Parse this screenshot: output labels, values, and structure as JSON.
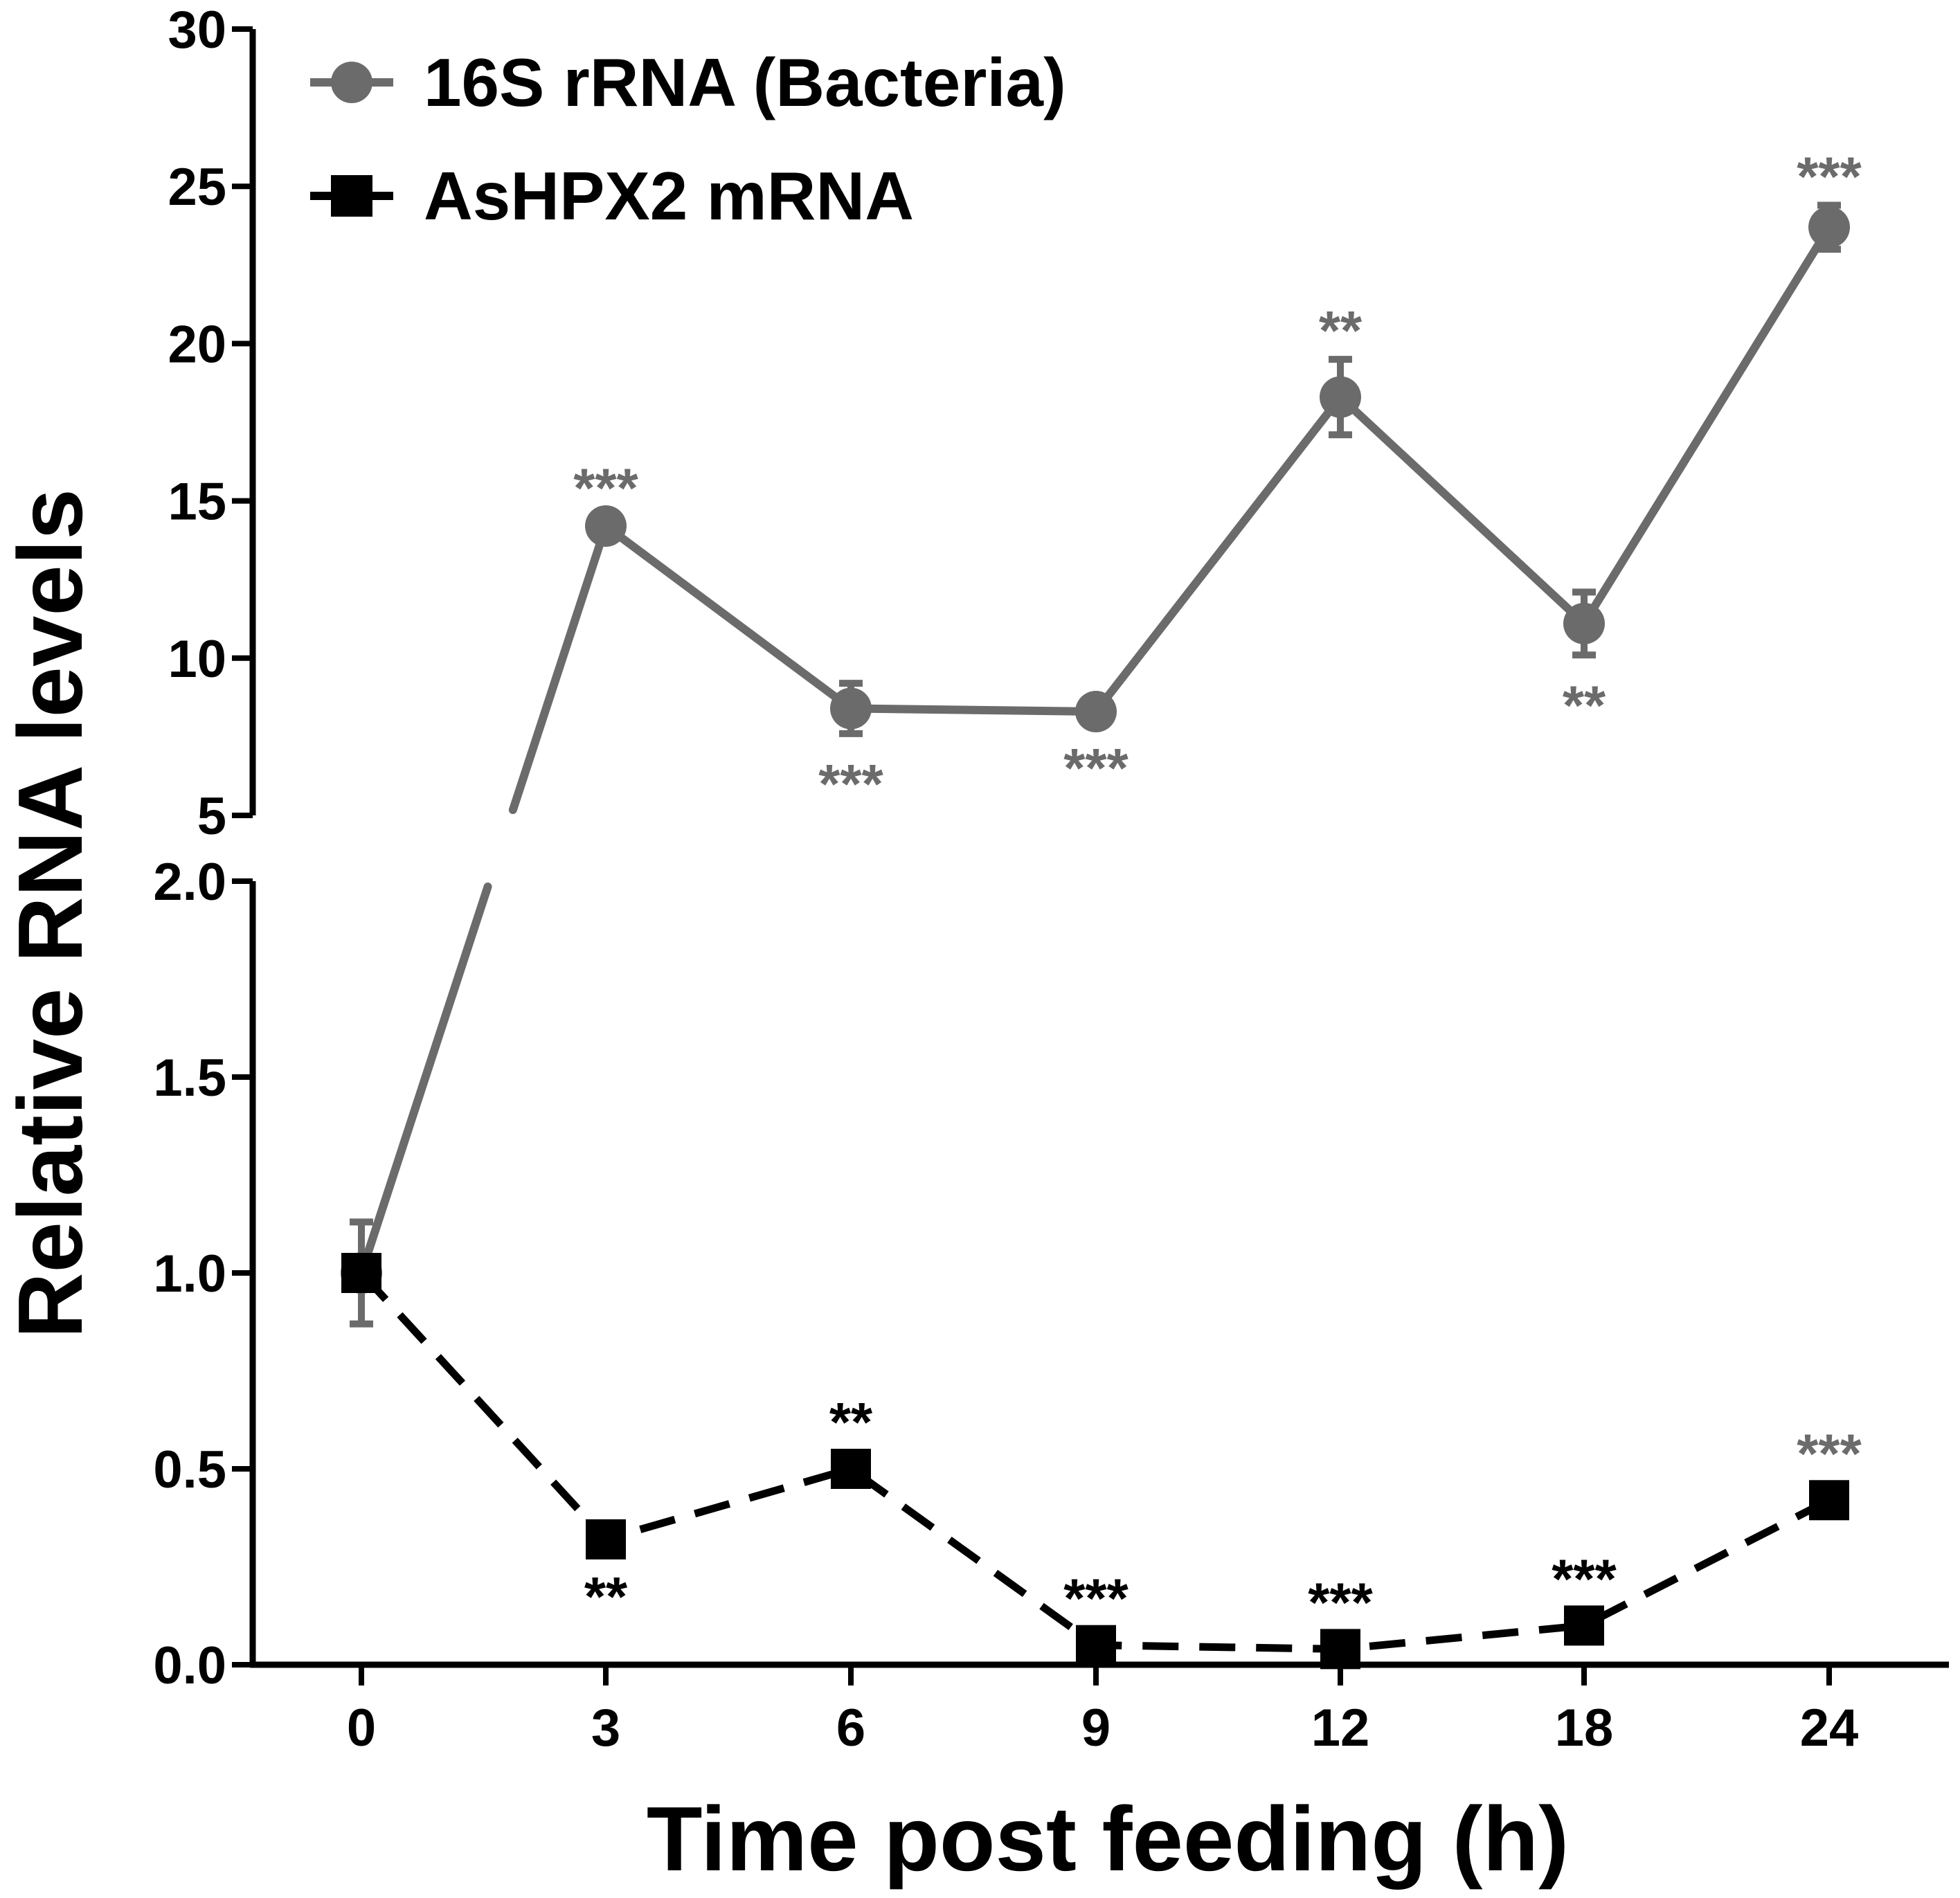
{
  "chart_data": {
    "type": "line",
    "title": "",
    "xlabel": "Time post feeding (h)",
    "ylabel": "Relative RNA levels",
    "categories": [
      "0",
      "3",
      "6",
      "9",
      "12",
      "18",
      "24"
    ],
    "axis_break": true,
    "y_lower": {
      "range": [
        0,
        2.0
      ],
      "ticks": [
        "0.0",
        "0.5",
        "1.0",
        "1.5",
        "2.0"
      ]
    },
    "y_upper": {
      "range": [
        5,
        30
      ],
      "ticks": [
        "5",
        "10",
        "15",
        "20",
        "25",
        "30"
      ]
    },
    "legend_position": "top-left",
    "series": [
      {
        "name": "16S rRNA (Bacteria)",
        "color": "#6b6b6b",
        "marker": "circle",
        "line": "solid",
        "values": [
          1.0,
          14.2,
          8.4,
          8.3,
          18.3,
          11.1,
          23.7
        ],
        "errors": [
          0.13,
          0.3,
          0.8,
          0.2,
          1.2,
          1.0,
          0.7
        ],
        "significance": [
          "",
          "***",
          "***",
          "***",
          "**",
          "**",
          "***"
        ],
        "sig_position": [
          "",
          "above",
          "below",
          "below",
          "above",
          "below",
          "above"
        ]
      },
      {
        "name": "AsHPX2 mRNA",
        "color": "#000000",
        "marker": "square",
        "line": "dashed",
        "values": [
          1.0,
          0.32,
          0.5,
          0.05,
          0.04,
          0.1,
          0.42
        ],
        "errors": [
          0,
          0,
          0,
          0,
          0,
          0,
          0
        ],
        "significance": [
          "",
          "**",
          "**",
          "***",
          "***",
          "***",
          "***"
        ],
        "sig_position": [
          "",
          "below",
          "above",
          "above",
          "above",
          "above",
          "above"
        ],
        "sig_colors": [
          "#000000",
          "#000000",
          "#000000",
          "#000000",
          "#000000",
          "#000000",
          "#6b6b6b"
        ]
      }
    ]
  }
}
